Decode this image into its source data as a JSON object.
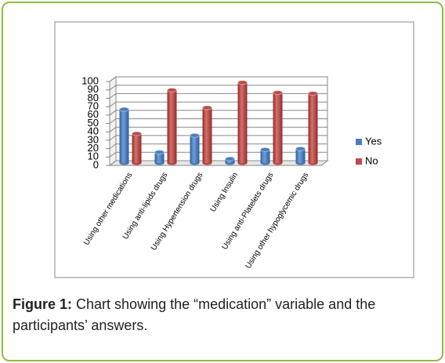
{
  "chart_data": {
    "type": "bar",
    "categories": [
      "Using other medications",
      "Using anti-lipids drugs",
      "Using Hypertension drugs",
      "Using Insulin",
      "Using anti-Platelets drugs",
      "Using other hypoglycemic drugs"
    ],
    "series": [
      {
        "name": "Yes",
        "color": "#4a7ebb",
        "values": [
          64,
          13,
          33,
          5,
          16,
          17
        ]
      },
      {
        "name": "No",
        "color": "#be4b48",
        "values": [
          35,
          87,
          66,
          96,
          84,
          83
        ]
      }
    ],
    "ylim": [
      0,
      100
    ],
    "yticks": [
      0,
      10,
      20,
      30,
      40,
      50,
      60,
      70,
      80,
      90,
      100
    ],
    "grid": true,
    "legend": "right"
  },
  "caption": {
    "label": "Figure 1:",
    "text": "Chart showing the “medication” variable and the participants’ answers."
  }
}
